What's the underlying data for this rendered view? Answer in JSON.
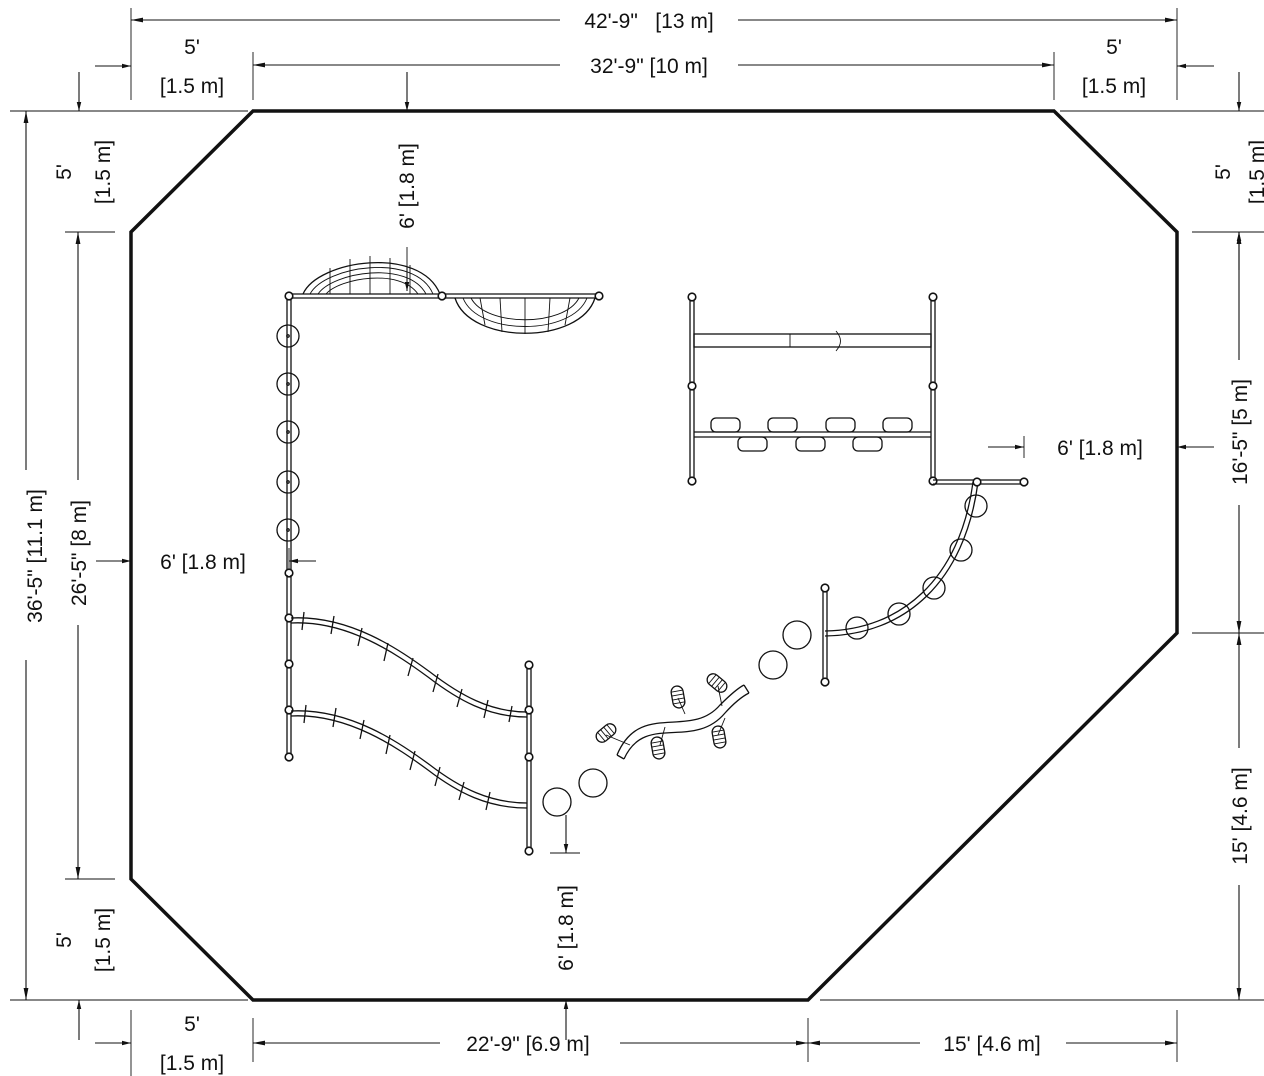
{
  "drawing": {
    "dimensions": {
      "overall_width": "42'-9\"   [13 m]",
      "inner_width_top": "32'-9\" [10 m]",
      "corner_top_left_w_ft": "5'",
      "corner_top_left_w_m": "[1.5 m]",
      "corner_top_right_w_ft": "5'",
      "corner_top_right_w_m": "[1.5 m]",
      "corner_top_left_h_ft": "5'",
      "corner_top_left_h_m": "[1.5 m]",
      "corner_top_right_h_ft": "5'",
      "corner_top_right_h_m": "[1.5 m]",
      "overall_height": "36'-5\" [11.1 m]",
      "inner_height_left": "26'-5\" [8 m]",
      "corner_bottom_left_h_ft": "5'",
      "corner_bottom_left_h_m": "[1.5 m]",
      "corner_bottom_left_w_ft": "5'",
      "corner_bottom_left_w_m": "[1.5 m]",
      "bottom_edge": "22'-9\" [6.9 m]",
      "bottom_right_offset": "15' [4.6 m]",
      "right_upper": "16'-5\" [5 m]",
      "right_lower": "15' [4.6 m]",
      "clearance_top": "6' [1.8 m]",
      "clearance_left": "6' [1.8 m]",
      "clearance_right": "6' [1.8 m]",
      "clearance_bottom": "6' [1.8 m]"
    }
  }
}
